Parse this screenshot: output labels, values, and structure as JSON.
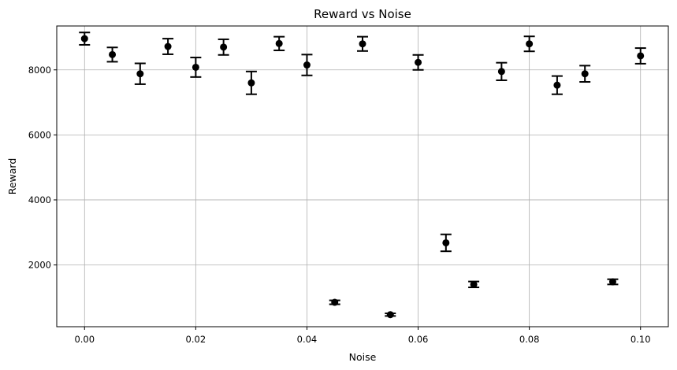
{
  "chart_data": {
    "type": "scatter",
    "title": "Reward vs Noise",
    "xlabel": "Noise",
    "ylabel": "Reward",
    "xlim": [
      -0.005,
      0.105
    ],
    "ylim": [
      100,
      9350
    ],
    "xticks": [
      0.0,
      0.02,
      0.04,
      0.06,
      0.08,
      0.1
    ],
    "xtick_labels": [
      "0.00",
      "0.02",
      "0.04",
      "0.06",
      "0.08",
      "0.10"
    ],
    "yticks": [
      2000,
      4000,
      6000,
      8000
    ],
    "ytick_labels": [
      "2000",
      "4000",
      "6000",
      "8000"
    ],
    "grid": true,
    "marker_color": "#000000",
    "points": [
      {
        "x": 0.0,
        "y": 8960,
        "err": 190
      },
      {
        "x": 0.005,
        "y": 8470,
        "err": 220
      },
      {
        "x": 0.01,
        "y": 7880,
        "err": 320
      },
      {
        "x": 0.015,
        "y": 8720,
        "err": 240
      },
      {
        "x": 0.02,
        "y": 8080,
        "err": 300
      },
      {
        "x": 0.025,
        "y": 8700,
        "err": 240
      },
      {
        "x": 0.03,
        "y": 7600,
        "err": 350
      },
      {
        "x": 0.035,
        "y": 8810,
        "err": 210
      },
      {
        "x": 0.04,
        "y": 8150,
        "err": 320
      },
      {
        "x": 0.045,
        "y": 850,
        "err": 60
      },
      {
        "x": 0.05,
        "y": 8800,
        "err": 220
      },
      {
        "x": 0.055,
        "y": 470,
        "err": 40
      },
      {
        "x": 0.06,
        "y": 8230,
        "err": 230
      },
      {
        "x": 0.065,
        "y": 2680,
        "err": 260
      },
      {
        "x": 0.07,
        "y": 1400,
        "err": 90
      },
      {
        "x": 0.075,
        "y": 7950,
        "err": 270
      },
      {
        "x": 0.08,
        "y": 8800,
        "err": 230
      },
      {
        "x": 0.085,
        "y": 7530,
        "err": 280
      },
      {
        "x": 0.09,
        "y": 7880,
        "err": 250
      },
      {
        "x": 0.095,
        "y": 1480,
        "err": 80
      },
      {
        "x": 0.1,
        "y": 8430,
        "err": 240
      }
    ]
  }
}
